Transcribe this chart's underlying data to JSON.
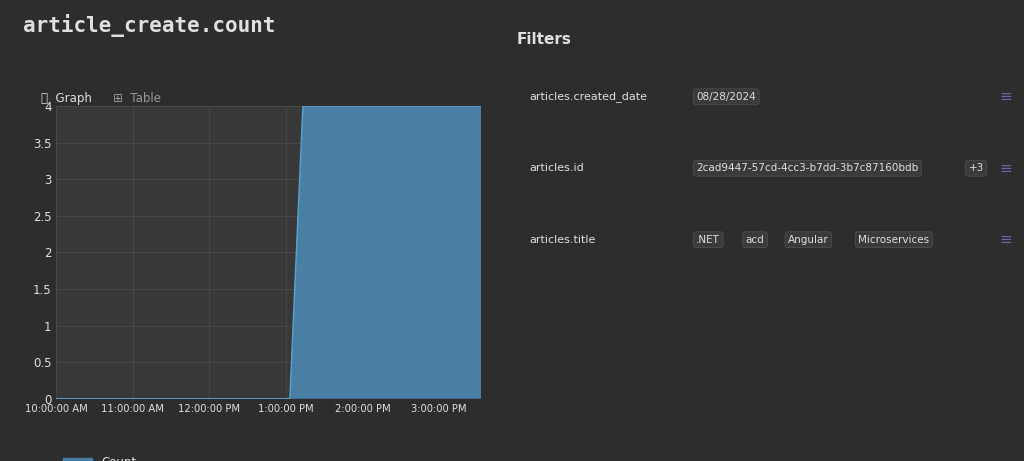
{
  "title": "article_create.count",
  "background_color": "#2d2d2d",
  "plot_bg_color": "#383838",
  "grid_color": "#4a4a4a",
  "text_color": "#e0e0e0",
  "title_fontsize": 15,
  "x_ticks_labels": [
    "10:00:00 AM",
    "11:00:00 AM",
    "12:00:00 PM",
    "1:00:00 PM",
    "2:00:00 PM",
    "3:00:00 PM"
  ],
  "x_ticks_hours": [
    10,
    11,
    12,
    13,
    14,
    15
  ],
  "xlim": [
    10,
    15.55
  ],
  "ylim": [
    0,
    4
  ],
  "yticks": [
    0,
    0.5,
    1,
    1.5,
    2,
    2.5,
    3,
    3.5,
    4
  ],
  "fill_x": [
    10.0,
    13.05,
    13.22,
    15.55,
    15.55,
    10.0
  ],
  "fill_y": [
    0,
    0,
    4,
    4,
    0,
    0
  ],
  "line_x": [
    10.0,
    13.05,
    13.22,
    15.55
  ],
  "line_y": [
    0,
    0,
    4,
    4
  ],
  "area_color": "#4a7fa5",
  "line_color": "#5ba3cc",
  "legend_label": "Count",
  "tab_graph": "Graph",
  "tab_table": "Table",
  "tab_underline_color": "#8b6bbf",
  "filters_title": "Filters",
  "filter_rows": [
    {
      "label": "articles.created_date",
      "tags": [
        "08/28/2024"
      ]
    },
    {
      "label": "articles.id",
      "tags": [
        "2cad9447-57cd-4cc3-b7dd-3b7c87160bdb",
        "+3"
      ]
    },
    {
      "label": "articles.title",
      "tags": [
        ".NET",
        "acd",
        "Angular",
        "Microservices"
      ]
    }
  ],
  "tag_bg_color": "#3a3a3a",
  "tag_border_color": "#505050",
  "filter_icon_color": "#7b5fac",
  "divider_color": "#484848"
}
